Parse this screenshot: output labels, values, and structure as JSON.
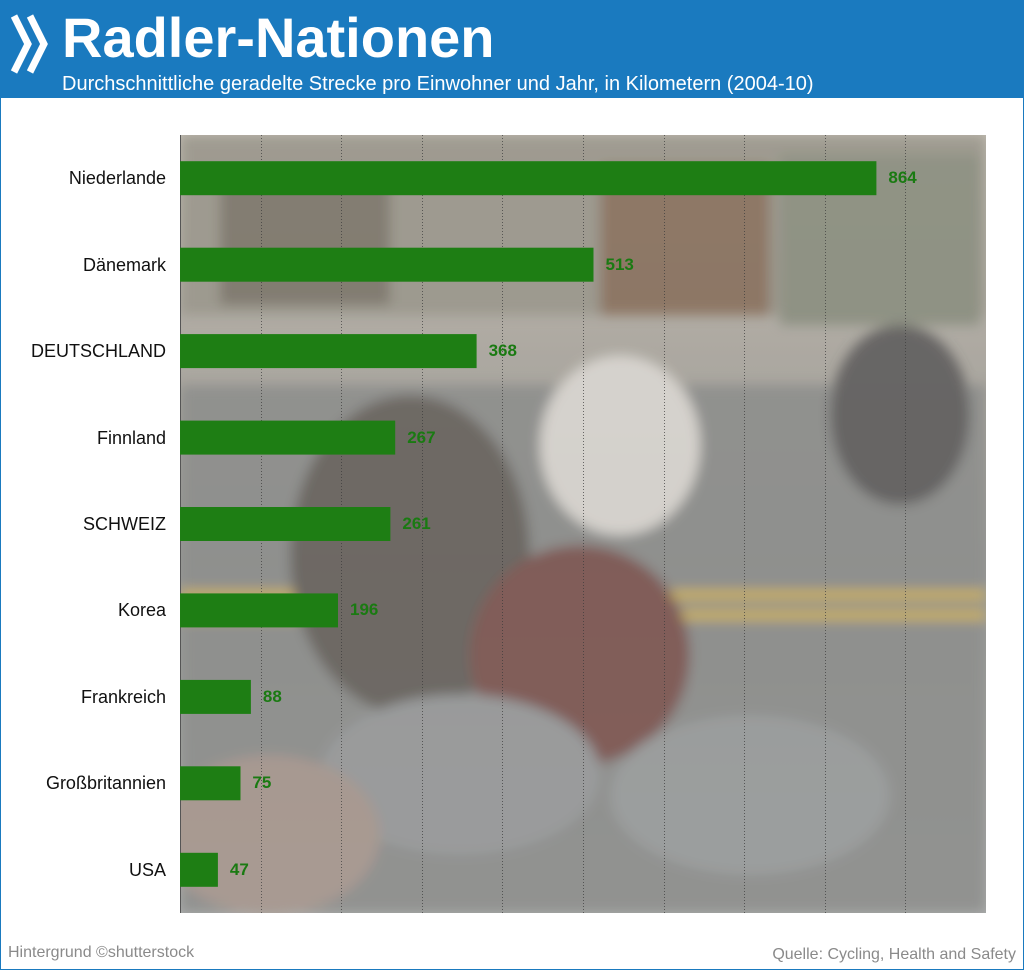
{
  "header": {
    "title": "Radler-Nationen",
    "subtitle": "Durchschnittliche geradelte Strecke pro Einwohner und Jahr, in Kilometern (2004-10)",
    "icon": "double-chevron-right-icon"
  },
  "footer": {
    "credit": "Hintergrund  ©shutterstock",
    "source": "Quelle: Cycling, Health and Safety"
  },
  "colors": {
    "header_bg": "#1a7abf",
    "bar": "#1e7e14",
    "value_text": "#1a7a12"
  },
  "chart_data": {
    "type": "bar",
    "orientation": "horizontal",
    "categories": [
      "Niederlande",
      "Dänemark",
      "DEUTSCHLAND",
      "Finnland",
      "SCHWEIZ",
      "Korea",
      "Frankreich",
      "Großbritannien",
      "USA"
    ],
    "values": [
      864,
      513,
      368,
      267,
      261,
      196,
      88,
      75,
      47
    ],
    "xlim": [
      0,
      1000
    ],
    "grid": "vertical dotted lines",
    "background": "photo of cyclists (shutterstock)"
  }
}
